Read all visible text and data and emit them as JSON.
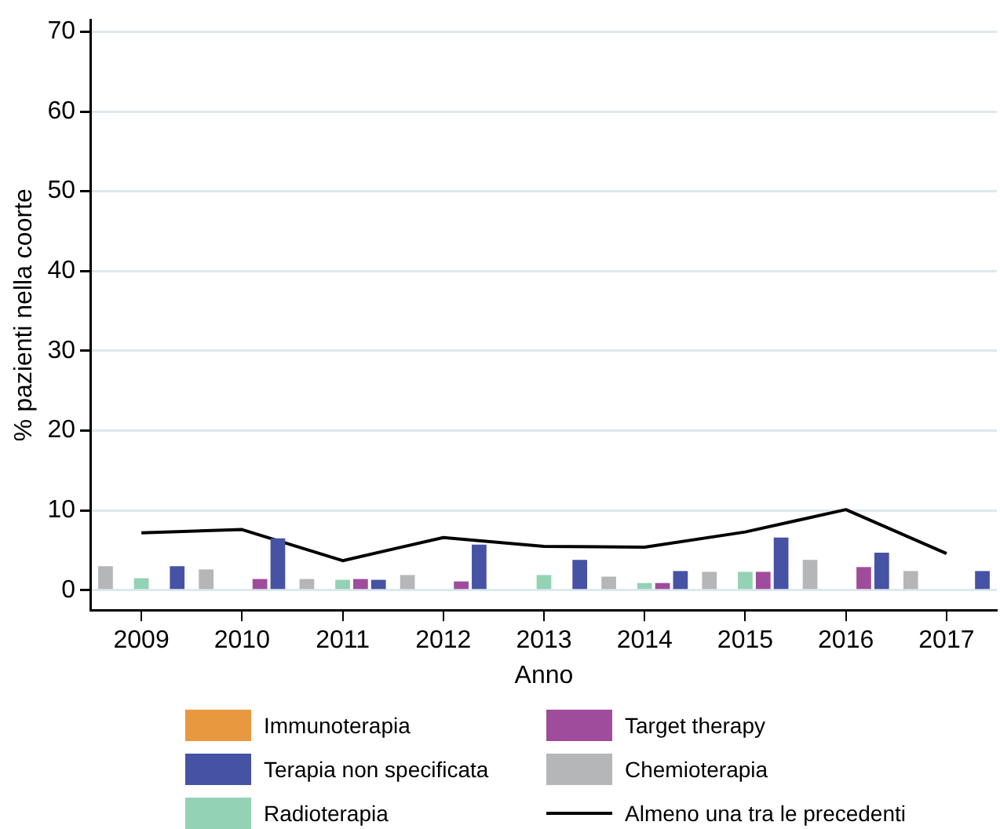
{
  "chart_data": {
    "type": "bar",
    "xlabel": "Anno",
    "ylabel": "% pazienti nella coorte",
    "categories": [
      "2009",
      "2010",
      "2011",
      "2012",
      "2013",
      "2014",
      "2015",
      "2016",
      "2017"
    ],
    "series": [
      {
        "name": "Chemioterapia",
        "color": "#b4b6b7",
        "values": [
          3.0,
          2.6,
          1.4,
          1.9,
          0,
          1.7,
          2.3,
          3.8,
          2.4
        ]
      },
      {
        "name": "Immunoterapia",
        "color": "#e8993f",
        "values": [
          0,
          0,
          0,
          0,
          0,
          0,
          0,
          0,
          0
        ]
      },
      {
        "name": "Radioterapia",
        "color": "#93d2b5",
        "values": [
          1.5,
          0,
          1.3,
          0,
          1.9,
          0.9,
          2.3,
          0,
          0
        ]
      },
      {
        "name": "Target therapy",
        "color": "#a04c9c",
        "values": [
          0,
          1.4,
          1.4,
          1.1,
          0,
          0.9,
          2.3,
          2.9,
          0
        ]
      },
      {
        "name": "Terapia non specificata",
        "color": "#4652a3",
        "values": [
          3.0,
          6.5,
          1.3,
          5.7,
          3.8,
          2.4,
          6.6,
          4.7,
          2.4
        ]
      },
      {
        "name": "Almeno una tra le precedenti",
        "type": "line",
        "color": "#000000",
        "values": [
          7.2,
          7.6,
          3.7,
          6.6,
          5.5,
          5.4,
          7.3,
          10.1,
          4.6
        ]
      }
    ],
    "ylim": [
      -2.5,
      71.5
    ],
    "yticks": [
      0,
      10,
      20,
      30,
      40,
      50,
      60,
      70
    ],
    "grid": "y",
    "legend": "bottom",
    "marker": "none"
  }
}
